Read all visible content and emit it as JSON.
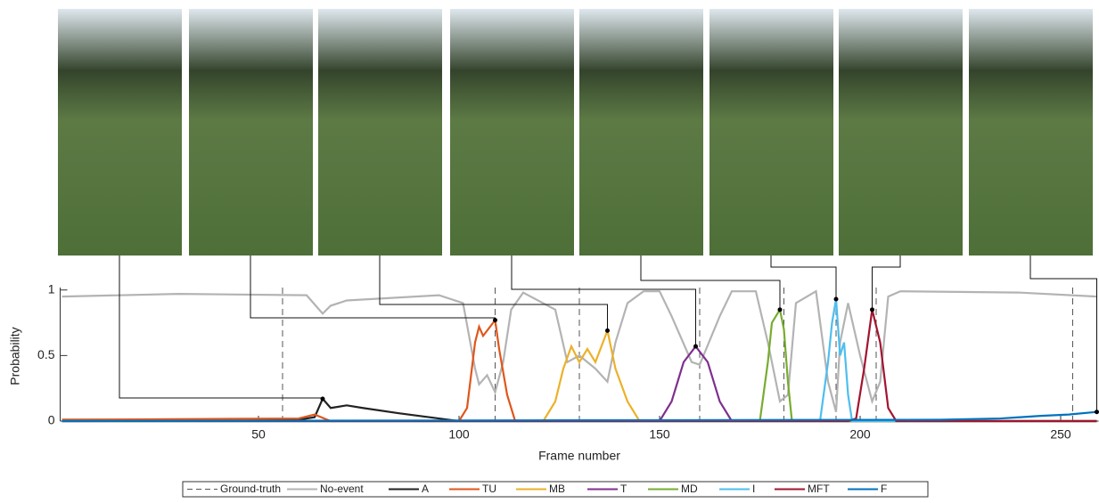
{
  "chart_data": {
    "type": "line",
    "xlabel": "Frame number",
    "ylabel": "Probability",
    "xlim": [
      1,
      259
    ],
    "ylim": [
      0,
      1.1
    ],
    "xticks": [
      50,
      100,
      150,
      200,
      250
    ],
    "yticks": [
      0,
      0.5,
      1
    ],
    "ground_truth": {
      "name": "Ground-truth",
      "color": "#555555",
      "x": [
        56,
        109,
        130,
        160,
        181,
        194,
        204,
        253
      ]
    },
    "series": [
      {
        "name": "No-event",
        "color": "#b3b3b3",
        "x": [
          1,
          30,
          62,
          66,
          68,
          72,
          95,
          101,
          104,
          105,
          107,
          109,
          111,
          113,
          116,
          124,
          127,
          130,
          134,
          137,
          139,
          142,
          146,
          150,
          153,
          158,
          160,
          165,
          168,
          174,
          177,
          180,
          182,
          184,
          189,
          192,
          194,
          195,
          197,
          200,
          203,
          205,
          207,
          210,
          240,
          259
        ],
        "values": [
          0.95,
          0.97,
          0.96,
          0.82,
          0.88,
          0.92,
          0.96,
          0.9,
          0.4,
          0.28,
          0.35,
          0.22,
          0.45,
          0.85,
          0.98,
          0.85,
          0.45,
          0.5,
          0.4,
          0.3,
          0.6,
          0.9,
          0.99,
          0.99,
          0.8,
          0.45,
          0.43,
          0.8,
          0.99,
          0.99,
          0.6,
          0.15,
          0.2,
          0.9,
          0.99,
          0.3,
          0.07,
          0.6,
          0.9,
          0.5,
          0.15,
          0.3,
          0.95,
          0.99,
          0.98,
          0.95
        ]
      },
      {
        "name": "A",
        "color": "#222222",
        "x": [
          1,
          60,
          64,
          66,
          68,
          72,
          76,
          85,
          95,
          100,
          259
        ],
        "values": [
          0.01,
          0.01,
          0.03,
          0.17,
          0.1,
          0.12,
          0.1,
          0.06,
          0.02,
          0,
          0
        ]
      },
      {
        "name": "TU",
        "color": "#e0561b",
        "x": [
          1,
          60,
          64,
          68,
          100,
          102,
          104,
          105,
          106,
          109,
          110,
          112,
          114,
          259
        ],
        "values": [
          0.01,
          0.02,
          0.05,
          0,
          0,
          0.1,
          0.6,
          0.72,
          0.65,
          0.77,
          0.55,
          0.2,
          0,
          0
        ]
      },
      {
        "name": "MB",
        "color": "#ecb12a",
        "x": [
          1,
          121,
          124,
          126,
          128,
          130,
          132,
          134,
          137,
          139,
          142,
          145,
          259
        ],
        "values": [
          0,
          0,
          0.15,
          0.4,
          0.57,
          0.45,
          0.55,
          0.45,
          0.69,
          0.4,
          0.15,
          0,
          0
        ]
      },
      {
        "name": "T",
        "color": "#7e2f8e",
        "x": [
          1,
          150,
          153,
          156,
          159,
          162,
          165,
          168,
          259
        ],
        "values": [
          0,
          0,
          0.15,
          0.45,
          0.57,
          0.45,
          0.15,
          0,
          0
        ]
      },
      {
        "name": "MD",
        "color": "#77ac30",
        "x": [
          1,
          175,
          177,
          178,
          180,
          181,
          182,
          183,
          259
        ],
        "values": [
          0,
          0,
          0.45,
          0.75,
          0.85,
          0.7,
          0.3,
          0,
          0
        ]
      },
      {
        "name": "I",
        "color": "#4dbeee",
        "x": [
          1,
          190,
          192,
          193,
          194,
          195,
          196,
          197,
          198,
          259
        ],
        "values": [
          0,
          0,
          0.45,
          0.75,
          0.93,
          0.5,
          0.6,
          0.2,
          0,
          0
        ]
      },
      {
        "name": "MFT",
        "color": "#a2142f",
        "x": [
          1,
          197,
          199,
          201,
          203,
          205,
          207,
          209,
          259
        ],
        "values": [
          0,
          0,
          0.02,
          0.4,
          0.85,
          0.6,
          0.1,
          0,
          0
        ]
      },
      {
        "name": "F",
        "color": "#0072bd",
        "x": [
          1,
          220,
          235,
          245,
          252,
          259
        ],
        "values": [
          0,
          0.01,
          0.02,
          0.04,
          0.05,
          0.07
        ]
      }
    ]
  }
}
